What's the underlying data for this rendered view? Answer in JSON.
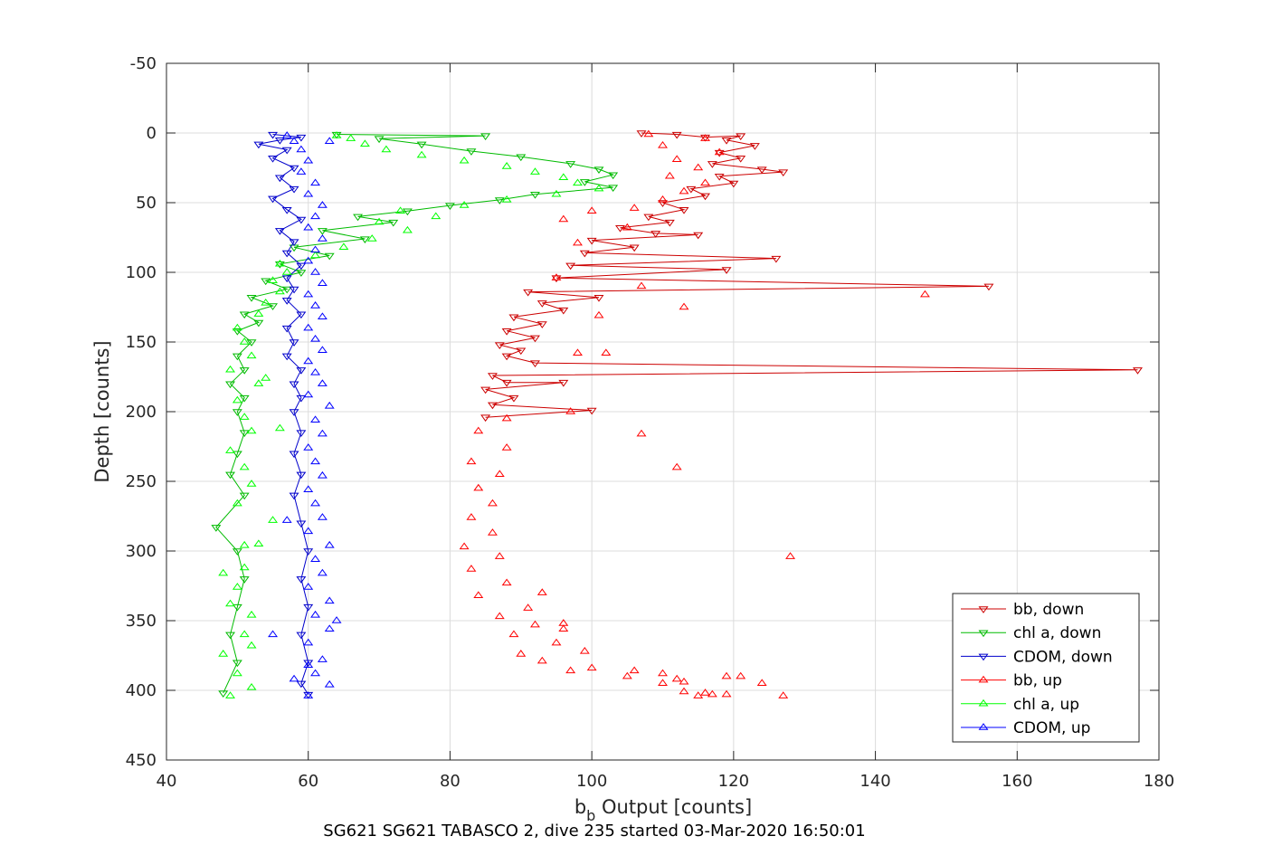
{
  "chart_data": {
    "type": "line",
    "caption": "SG621 SG621 TABASCO 2, dive 235 started 03-Mar-2020 16:50:01",
    "xlabel_main": "b",
    "xlabel_sub": "b",
    "xlabel_rest": " Output [counts]",
    "ylabel": "Depth [counts]",
    "xlim": [
      40,
      180
    ],
    "ylim": [
      -50,
      450
    ],
    "y_reversed": true,
    "grid": true,
    "xticks": [
      "40",
      "60",
      "80",
      "100",
      "120",
      "140",
      "160",
      "180"
    ],
    "yticks": [
      "-50",
      "0",
      "50",
      "100",
      "150",
      "200",
      "250",
      "300",
      "350",
      "400",
      "450"
    ],
    "legend_position": "bottom-right",
    "series": [
      {
        "name": "bb, down",
        "color": "#cc0000",
        "marker": "triangle-down",
        "line": true,
        "points": [
          [
            107,
            0
          ],
          [
            112,
            1
          ],
          [
            116,
            3
          ],
          [
            121,
            2
          ],
          [
            119,
            5
          ],
          [
            123,
            9
          ],
          [
            118,
            14
          ],
          [
            121,
            18
          ],
          [
            117,
            22
          ],
          [
            124,
            26
          ],
          [
            127,
            28
          ],
          [
            118,
            31
          ],
          [
            120,
            36
          ],
          [
            114,
            40
          ],
          [
            116,
            45
          ],
          [
            110,
            50
          ],
          [
            113,
            55
          ],
          [
            108,
            60
          ],
          [
            111,
            64
          ],
          [
            104,
            68
          ],
          [
            109,
            72
          ],
          [
            115,
            73
          ],
          [
            100,
            77
          ],
          [
            106,
            82
          ],
          [
            99,
            86
          ],
          [
            126,
            90
          ],
          [
            97,
            95
          ],
          [
            119,
            98
          ],
          [
            95,
            104
          ],
          [
            156,
            110
          ],
          [
            91,
            114
          ],
          [
            101,
            118
          ],
          [
            93,
            122
          ],
          [
            96,
            127
          ],
          [
            89,
            132
          ],
          [
            93,
            137
          ],
          [
            88,
            142
          ],
          [
            92,
            147
          ],
          [
            87,
            152
          ],
          [
            90,
            156
          ],
          [
            88,
            160
          ],
          [
            92,
            165
          ],
          [
            177,
            170
          ],
          [
            86,
            174
          ],
          [
            88,
            179
          ],
          [
            96,
            179
          ],
          [
            85,
            184
          ],
          [
            89,
            190
          ],
          [
            86,
            195
          ],
          [
            100,
            199
          ],
          [
            85,
            204
          ]
        ]
      },
      {
        "name": "chl a, down",
        "color": "#00bb00",
        "marker": "triangle-down",
        "line": true,
        "points": [
          [
            64,
            1
          ],
          [
            85,
            2
          ],
          [
            70,
            4
          ],
          [
            76,
            8
          ],
          [
            83,
            13
          ],
          [
            90,
            17
          ],
          [
            97,
            22
          ],
          [
            101,
            26
          ],
          [
            103,
            30
          ],
          [
            99,
            35
          ],
          [
            103,
            39
          ],
          [
            92,
            44
          ],
          [
            87,
            48
          ],
          [
            80,
            52
          ],
          [
            74,
            56
          ],
          [
            67,
            60
          ],
          [
            72,
            64
          ],
          [
            62,
            70
          ],
          [
            68,
            76
          ],
          [
            58,
            82
          ],
          [
            63,
            88
          ],
          [
            56,
            94
          ],
          [
            59,
            100
          ],
          [
            54,
            106
          ],
          [
            57,
            112
          ],
          [
            52,
            118
          ],
          [
            55,
            124
          ],
          [
            51,
            130
          ],
          [
            53,
            136
          ],
          [
            50,
            142
          ],
          [
            52,
            150
          ],
          [
            50,
            160
          ],
          [
            51,
            170
          ],
          [
            49,
            180
          ],
          [
            51,
            190
          ],
          [
            50,
            200
          ],
          [
            51,
            215
          ],
          [
            50,
            230
          ],
          [
            49,
            245
          ],
          [
            51,
            260
          ],
          [
            47,
            283
          ],
          [
            50,
            300
          ],
          [
            51,
            320
          ],
          [
            50,
            340
          ],
          [
            49,
            360
          ],
          [
            50,
            380
          ],
          [
            48,
            402
          ]
        ]
      },
      {
        "name": "CDOM, down",
        "color": "#0000cc",
        "marker": "triangle-down",
        "line": true,
        "points": [
          [
            55,
            1
          ],
          [
            59,
            3
          ],
          [
            56,
            5
          ],
          [
            53,
            8
          ],
          [
            57,
            12
          ],
          [
            55,
            18
          ],
          [
            58,
            25
          ],
          [
            56,
            32
          ],
          [
            58,
            40
          ],
          [
            55,
            47
          ],
          [
            57,
            55
          ],
          [
            59,
            62
          ],
          [
            56,
            70
          ],
          [
            58,
            78
          ],
          [
            57,
            86
          ],
          [
            59,
            95
          ],
          [
            57,
            104
          ],
          [
            58,
            112
          ],
          [
            57,
            120
          ],
          [
            59,
            130
          ],
          [
            57,
            140
          ],
          [
            58,
            150
          ],
          [
            57,
            160
          ],
          [
            59,
            170
          ],
          [
            58,
            180
          ],
          [
            59,
            190
          ],
          [
            58,
            200
          ],
          [
            59,
            215
          ],
          [
            58,
            230
          ],
          [
            59,
            245
          ],
          [
            58,
            260
          ],
          [
            59,
            280
          ],
          [
            60,
            300
          ],
          [
            59,
            320
          ],
          [
            60,
            340
          ],
          [
            59,
            360
          ],
          [
            60,
            380
          ],
          [
            59,
            395
          ],
          [
            60,
            403
          ]
        ]
      },
      {
        "name": "bb, up",
        "color": "#ff0000",
        "marker": "triangle-up",
        "line": false,
        "points": [
          [
            128,
            304
          ],
          [
            117,
            403
          ],
          [
            127,
            404
          ],
          [
            115,
            404
          ],
          [
            113,
            401
          ],
          [
            116,
            402
          ],
          [
            119,
            403
          ],
          [
            110,
            395
          ],
          [
            119,
            390
          ],
          [
            105,
            390
          ],
          [
            112,
            392
          ],
          [
            97,
            386
          ],
          [
            100,
            384
          ],
          [
            93,
            379
          ],
          [
            90,
            374
          ],
          [
            95,
            366
          ],
          [
            89,
            360
          ],
          [
            92,
            353
          ],
          [
            96,
            356
          ],
          [
            87,
            347
          ],
          [
            91,
            341
          ],
          [
            84,
            332
          ],
          [
            88,
            323
          ],
          [
            83,
            313
          ],
          [
            87,
            304
          ],
          [
            82,
            297
          ],
          [
            86,
            287
          ],
          [
            83,
            276
          ],
          [
            86,
            266
          ],
          [
            84,
            255
          ],
          [
            87,
            245
          ],
          [
            83,
            236
          ],
          [
            88,
            226
          ],
          [
            84,
            214
          ],
          [
            88,
            205
          ],
          [
            97,
            200
          ],
          [
            107,
            216
          ],
          [
            112,
            240
          ],
          [
            98,
            158
          ],
          [
            102,
            158
          ],
          [
            95,
            104
          ],
          [
            147,
            116
          ],
          [
            107,
            110
          ],
          [
            113,
            125
          ],
          [
            101,
            131
          ],
          [
            98,
            79
          ],
          [
            105,
            68
          ],
          [
            96,
            62
          ],
          [
            100,
            56
          ],
          [
            106,
            54
          ],
          [
            110,
            48
          ],
          [
            113,
            42
          ],
          [
            116,
            36
          ],
          [
            111,
            31
          ],
          [
            115,
            25
          ],
          [
            112,
            19
          ],
          [
            118,
            14
          ],
          [
            110,
            9
          ],
          [
            116,
            4
          ],
          [
            108,
            1
          ],
          [
            93,
            330
          ],
          [
            96,
            352
          ],
          [
            99,
            372
          ],
          [
            113,
            394
          ],
          [
            121,
            390
          ],
          [
            124,
            395
          ],
          [
            110,
            388
          ],
          [
            106,
            386
          ]
        ]
      },
      {
        "name": "chl a, up",
        "color": "#00ff00",
        "marker": "triangle-up",
        "line": false,
        "points": [
          [
            49,
            404
          ],
          [
            52,
            398
          ],
          [
            50,
            388
          ],
          [
            48,
            374
          ],
          [
            51,
            360
          ],
          [
            52,
            346
          ],
          [
            49,
            338
          ],
          [
            50,
            326
          ],
          [
            51,
            312
          ],
          [
            53,
            295
          ],
          [
            55,
            278
          ],
          [
            50,
            266
          ],
          [
            52,
            252
          ],
          [
            51,
            240
          ],
          [
            49,
            228
          ],
          [
            52,
            214
          ],
          [
            51,
            204
          ],
          [
            50,
            192
          ],
          [
            53,
            180
          ],
          [
            49,
            170
          ],
          [
            52,
            160
          ],
          [
            51,
            150
          ],
          [
            50,
            140
          ],
          [
            53,
            130
          ],
          [
            54,
            122
          ],
          [
            56,
            114
          ],
          [
            55,
            106
          ],
          [
            57,
            100
          ],
          [
            56,
            94
          ],
          [
            61,
            88
          ],
          [
            65,
            82
          ],
          [
            69,
            76
          ],
          [
            74,
            70
          ],
          [
            70,
            64
          ],
          [
            78,
            60
          ],
          [
            73,
            56
          ],
          [
            82,
            52
          ],
          [
            88,
            48
          ],
          [
            95,
            44
          ],
          [
            101,
            40
          ],
          [
            98,
            36
          ],
          [
            96,
            32
          ],
          [
            92,
            28
          ],
          [
            88,
            24
          ],
          [
            82,
            20
          ],
          [
            76,
            16
          ],
          [
            71,
            12
          ],
          [
            68,
            8
          ],
          [
            66,
            4
          ],
          [
            64,
            2
          ],
          [
            54,
            176
          ],
          [
            56,
            212
          ],
          [
            51,
            296
          ],
          [
            48,
            316
          ],
          [
            52,
            368
          ]
        ]
      },
      {
        "name": "CDOM, up",
        "color": "#0000ff",
        "marker": "triangle-up",
        "line": false,
        "points": [
          [
            60,
            404
          ],
          [
            63,
            396
          ],
          [
            61,
            388
          ],
          [
            62,
            378
          ],
          [
            60,
            366
          ],
          [
            63,
            356
          ],
          [
            61,
            346
          ],
          [
            63,
            336
          ],
          [
            60,
            326
          ],
          [
            62,
            316
          ],
          [
            61,
            306
          ],
          [
            63,
            296
          ],
          [
            60,
            286
          ],
          [
            62,
            276
          ],
          [
            61,
            266
          ],
          [
            60,
            256
          ],
          [
            62,
            246
          ],
          [
            61,
            236
          ],
          [
            60,
            226
          ],
          [
            62,
            216
          ],
          [
            61,
            206
          ],
          [
            63,
            196
          ],
          [
            60,
            188
          ],
          [
            62,
            180
          ],
          [
            61,
            172
          ],
          [
            60,
            164
          ],
          [
            62,
            156
          ],
          [
            61,
            148
          ],
          [
            60,
            140
          ],
          [
            62,
            132
          ],
          [
            61,
            124
          ],
          [
            60,
            116
          ],
          [
            62,
            108
          ],
          [
            61,
            100
          ],
          [
            60,
            92
          ],
          [
            61,
            84
          ],
          [
            62,
            76
          ],
          [
            60,
            68
          ],
          [
            61,
            60
          ],
          [
            62,
            52
          ],
          [
            60,
            44
          ],
          [
            61,
            36
          ],
          [
            59,
            28
          ],
          [
            60,
            20
          ],
          [
            59,
            12
          ],
          [
            58,
            6
          ],
          [
            57,
            2
          ],
          [
            63,
            6
          ],
          [
            57,
            278
          ],
          [
            60,
            382
          ],
          [
            64,
            350
          ],
          [
            55,
            360
          ],
          [
            58,
            392
          ]
        ]
      }
    ]
  }
}
